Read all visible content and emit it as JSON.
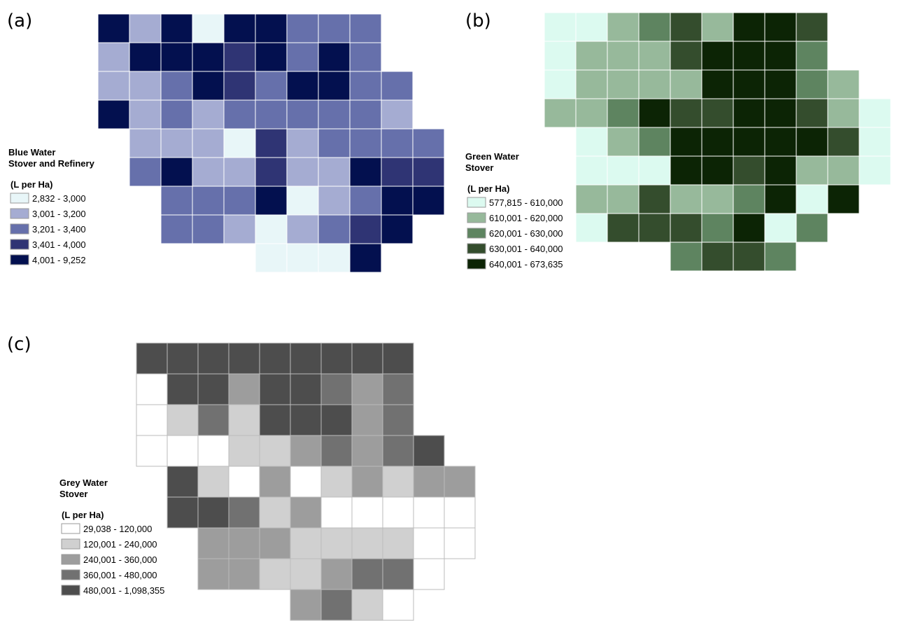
{
  "panels": [
    {
      "label": "(a)",
      "legend": {
        "title": [
          "Blue Water",
          "Stover and Refinery"
        ],
        "unit": "(L per Ha)",
        "items": [
          {
            "label": "2,832 - 3,000",
            "color": "#e8f6f8"
          },
          {
            "label": "3,001 - 3,200",
            "color": "#a5acd2"
          },
          {
            "label": "3,201 - 3,400",
            "color": "#6670ab"
          },
          {
            "label": "3,401 - 4,000",
            "color": "#2f3474"
          },
          {
            "label": "4,001 - 9,252",
            "color": "#03104f"
          }
        ]
      },
      "counties": [
        [
          4,
          1,
          4,
          0,
          4,
          4,
          2,
          2,
          2,
          null,
          null
        ],
        [
          1,
          4,
          4,
          4,
          3,
          4,
          2,
          4,
          2,
          null,
          null
        ],
        [
          1,
          1,
          2,
          4,
          3,
          2,
          4,
          4,
          2,
          2,
          null
        ],
        [
          4,
          1,
          2,
          1,
          2,
          2,
          2,
          2,
          2,
          1,
          null
        ],
        [
          null,
          1,
          1,
          1,
          0,
          3,
          1,
          2,
          2,
          2,
          2
        ],
        [
          null,
          2,
          4,
          1,
          1,
          3,
          1,
          1,
          4,
          3,
          3
        ],
        [
          null,
          null,
          2,
          2,
          2,
          4,
          0,
          1,
          2,
          4,
          4
        ],
        [
          null,
          null,
          2,
          2,
          1,
          0,
          1,
          2,
          3,
          4,
          null
        ],
        [
          null,
          null,
          null,
          null,
          null,
          0,
          0,
          0,
          4,
          null,
          null
        ]
      ]
    },
    {
      "label": "(b)",
      "legend": {
        "title": [
          "Green Water",
          "Stover"
        ],
        "unit": "(L per Ha)",
        "items": [
          {
            "label": "577,815 - 610,000",
            "color": "#dcfaf0"
          },
          {
            "label": "610,001 - 620,000",
            "color": "#97b99b"
          },
          {
            "label": "620,001 - 630,000",
            "color": "#5e8460"
          },
          {
            "label": "630,001 - 640,000",
            "color": "#344d2d"
          },
          {
            "label": "640,001 - 673,635",
            "color": "#0c2405"
          }
        ]
      },
      "counties": [
        [
          0,
          0,
          1,
          2,
          3,
          1,
          4,
          4,
          3,
          null,
          null
        ],
        [
          0,
          1,
          1,
          1,
          3,
          4,
          4,
          4,
          2,
          null,
          null
        ],
        [
          0,
          1,
          1,
          1,
          1,
          4,
          4,
          4,
          2,
          1,
          null
        ],
        [
          1,
          1,
          2,
          4,
          3,
          3,
          4,
          4,
          3,
          1,
          0
        ],
        [
          null,
          0,
          1,
          2,
          4,
          4,
          4,
          4,
          4,
          3,
          0
        ],
        [
          null,
          0,
          0,
          0,
          4,
          4,
          3,
          4,
          1,
          1,
          0
        ],
        [
          null,
          1,
          1,
          3,
          1,
          1,
          2,
          4,
          0,
          4,
          null
        ],
        [
          null,
          0,
          3,
          3,
          3,
          2,
          4,
          0,
          2,
          null,
          null
        ],
        [
          null,
          null,
          null,
          null,
          2,
          3,
          3,
          2,
          null,
          null,
          null
        ]
      ]
    },
    {
      "label": "(c)",
      "legend": {
        "title": [
          "Grey Water",
          "Stover"
        ],
        "unit": "(L per Ha)",
        "items": [
          {
            "label": "29,038 - 120,000",
            "color": "#ffffff"
          },
          {
            "label": "120,001 - 240,000",
            "color": "#d0d0d0"
          },
          {
            "label": "240,001 - 360,000",
            "color": "#9d9d9d"
          },
          {
            "label": "360,001 - 480,000",
            "color": "#717171"
          },
          {
            "label": "480,001 - 1,098,355",
            "color": "#4d4d4d"
          }
        ]
      },
      "counties": [
        [
          4,
          4,
          4,
          4,
          4,
          4,
          4,
          4,
          4,
          null,
          null
        ],
        [
          0,
          4,
          4,
          2,
          4,
          4,
          3,
          2,
          3,
          null,
          null
        ],
        [
          0,
          1,
          3,
          1,
          4,
          4,
          4,
          2,
          3,
          null,
          null
        ],
        [
          0,
          0,
          0,
          1,
          1,
          2,
          3,
          2,
          3,
          4,
          null
        ],
        [
          null,
          4,
          1,
          0,
          2,
          0,
          1,
          2,
          1,
          2,
          2
        ],
        [
          null,
          4,
          4,
          3,
          1,
          2,
          0,
          0,
          0,
          0,
          0
        ],
        [
          null,
          null,
          2,
          2,
          2,
          1,
          1,
          1,
          1,
          0,
          0
        ],
        [
          null,
          null,
          2,
          2,
          1,
          1,
          2,
          3,
          3,
          0,
          null
        ],
        [
          null,
          null,
          null,
          null,
          null,
          2,
          3,
          1,
          0,
          null,
          null
        ]
      ]
    }
  ]
}
